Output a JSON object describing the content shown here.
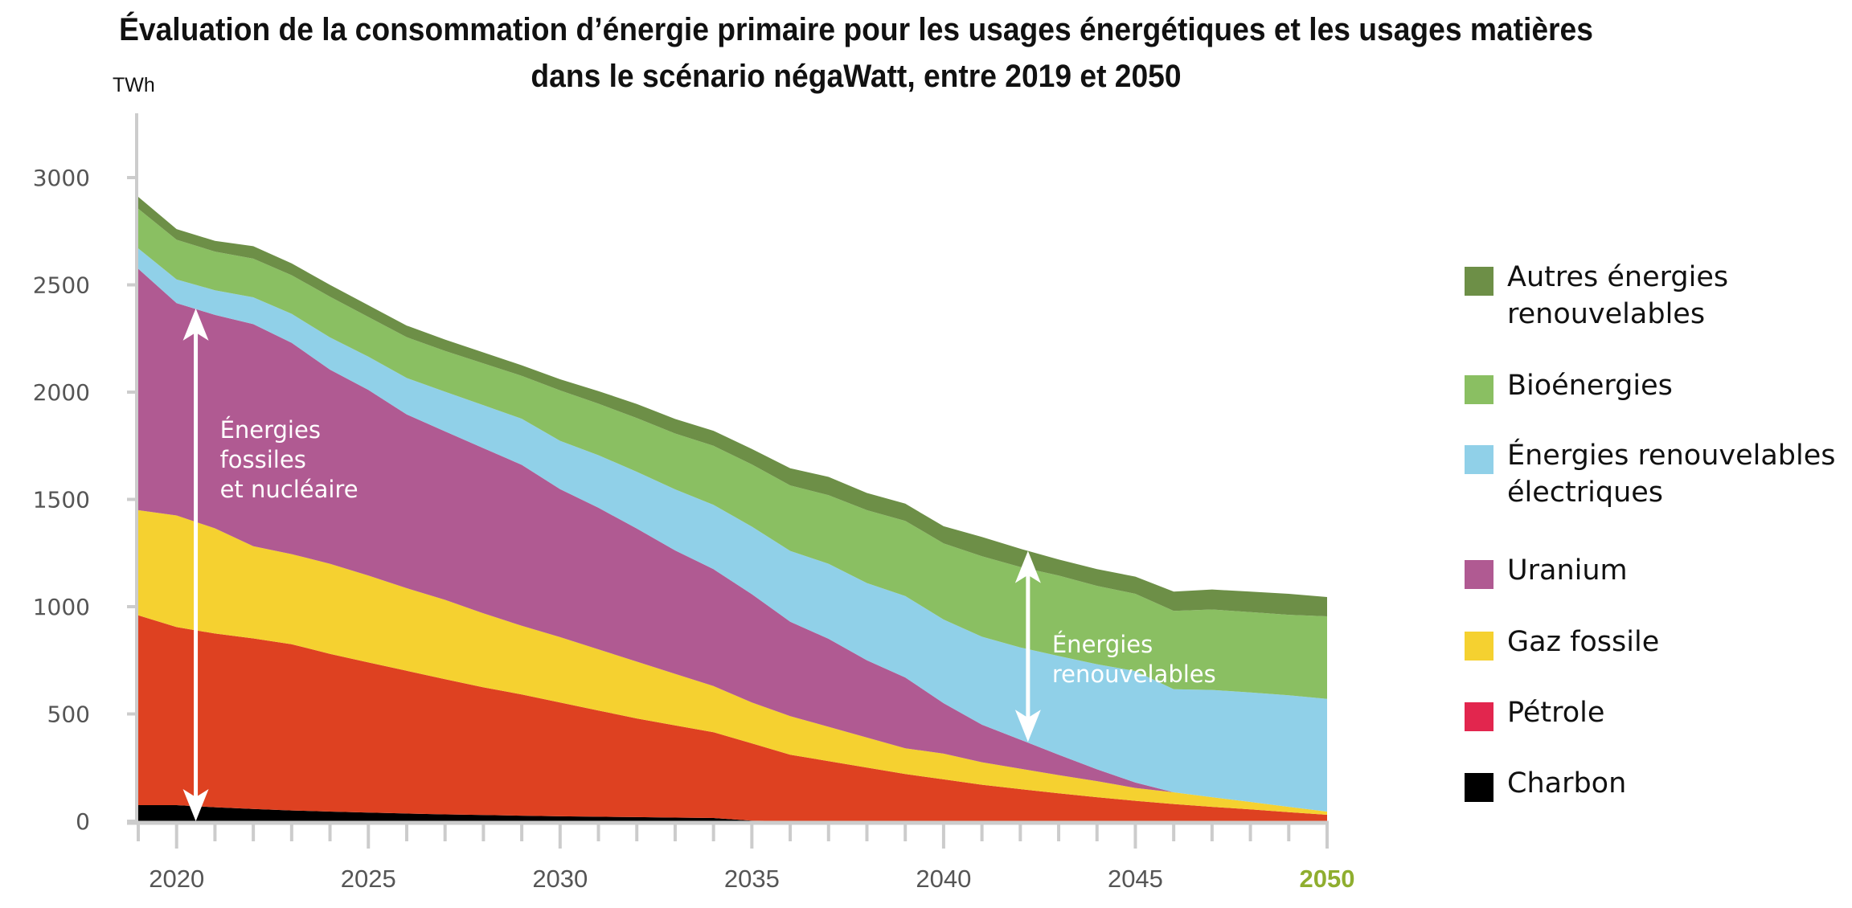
{
  "chart_data": {
    "type": "area",
    "stacked": true,
    "title": "Évaluation de la consommation d’énergie primaire pour les usages énergétiques et les usages matières dans le scénario négaWatt, entre 2019 et 2050",
    "title_lines": [
      "Évaluation de la consommation d’énergie primaire pour les usages énergétiques et les usages matières",
      "dans le scénario négaWatt, entre 2019 et 2050"
    ],
    "xlabel": "",
    "ylabel": "TWh",
    "ylim": [
      0,
      3000
    ],
    "xlim": [
      2019,
      2050
    ],
    "yticks": [
      0,
      500,
      1000,
      1500,
      2000,
      2500,
      3000
    ],
    "xticks_labeled": [
      2020,
      2025,
      2030,
      2035,
      2040,
      2045,
      2050
    ],
    "highlight_xtick": 2050,
    "grid": false,
    "legend_position": "right",
    "x": [
      2019,
      2020,
      2021,
      2022,
      2023,
      2024,
      2025,
      2026,
      2027,
      2028,
      2029,
      2030,
      2031,
      2032,
      2033,
      2034,
      2035,
      2036,
      2037,
      2038,
      2039,
      2040,
      2041,
      2042,
      2043,
      2044,
      2045,
      2046,
      2047,
      2048,
      2049,
      2050
    ],
    "series": [
      {
        "name": "Charbon",
        "color": "#000000",
        "values": [
          75,
          75,
          65,
          57,
          50,
          45,
          40,
          36,
          32,
          29,
          26,
          23,
          21,
          19,
          17,
          15,
          3,
          0,
          0,
          0,
          0,
          0,
          0,
          0,
          0,
          0,
          0,
          0,
          0,
          0,
          0,
          0
        ]
      },
      {
        "name": "Pétrole",
        "color": "#de4121",
        "values": [
          885,
          830,
          810,
          795,
          775,
          735,
          700,
          665,
          630,
          595,
          565,
          530,
          495,
          460,
          430,
          400,
          360,
          310,
          280,
          250,
          220,
          195,
          170,
          150,
          130,
          112,
          95,
          80,
          67,
          55,
          42,
          30
        ]
      },
      {
        "name": "Gaz fossile",
        "color": "#f5d130",
        "values": [
          490,
          520,
          490,
          430,
          420,
          420,
          405,
          385,
          370,
          345,
          320,
          305,
          285,
          265,
          240,
          215,
          190,
          180,
          160,
          140,
          120,
          120,
          105,
          95,
          85,
          75,
          60,
          55,
          45,
          35,
          25,
          15
        ]
      },
      {
        "name": "Uranium",
        "color": "#b05a92",
        "values": [
          1125,
          990,
          995,
          1035,
          985,
          905,
          865,
          810,
          785,
          770,
          750,
          690,
          660,
          620,
          575,
          545,
          505,
          440,
          410,
          360,
          330,
          235,
          175,
          135,
          95,
          55,
          25,
          0,
          0,
          0,
          0,
          0
        ]
      },
      {
        "name": "Énergies renouvelables électriques",
        "color": "#90d0e8",
        "values": [
          95,
          110,
          115,
          125,
          135,
          150,
          155,
          170,
          185,
          200,
          215,
          225,
          245,
          265,
          285,
          300,
          315,
          330,
          350,
          360,
          380,
          390,
          410,
          430,
          460,
          490,
          520,
          480,
          500,
          510,
          520,
          525
        ]
      },
      {
        "name": "Bioénergies",
        "color": "#8abf62",
        "values": [
          185,
          185,
          180,
          180,
          180,
          190,
          185,
          190,
          190,
          195,
          200,
          235,
          240,
          250,
          260,
          275,
          290,
          305,
          320,
          340,
          350,
          355,
          375,
          375,
          375,
          365,
          360,
          365,
          375,
          375,
          375,
          385
        ]
      },
      {
        "name": "Autres énergies renouvelables",
        "color": "#6d8f47",
        "values": [
          55,
          50,
          50,
          58,
          55,
          55,
          55,
          54,
          53,
          51,
          49,
          52,
          59,
          66,
          68,
          70,
          72,
          80,
          85,
          80,
          80,
          80,
          90,
          85,
          75,
          78,
          80,
          90,
          93,
          95,
          98,
          90
        ]
      }
    ],
    "annotations": [
      {
        "text_lines": [
          "Énergies",
          "fossiles",
          "et nucléaire"
        ],
        "arrow": "double",
        "x": 2020.5,
        "from": 0,
        "to": 2390
      },
      {
        "text_lines": [
          "Énergies",
          "renouvelables"
        ],
        "arrow": "double",
        "x": 2042.2,
        "from": 370,
        "to": 1260
      }
    ]
  },
  "legend": [
    {
      "lines": [
        "Autres énergies",
        "renouvelables"
      ],
      "color": "#6d8f47"
    },
    {
      "lines": [
        "Bioénergies"
      ],
      "color": "#8abf62"
    },
    {
      "lines": [
        "Énergies renouvelables",
        "électriques"
      ],
      "color": "#90d0e8"
    },
    {
      "lines": [
        "Uranium"
      ],
      "color": "#b05a92"
    },
    {
      "lines": [
        "Gaz fossile"
      ],
      "color": "#f5d130"
    },
    {
      "lines": [
        "Pétrole"
      ],
      "color": "#e2264e"
    },
    {
      "lines": [
        "Charbon"
      ],
      "color": "#000000"
    }
  ]
}
